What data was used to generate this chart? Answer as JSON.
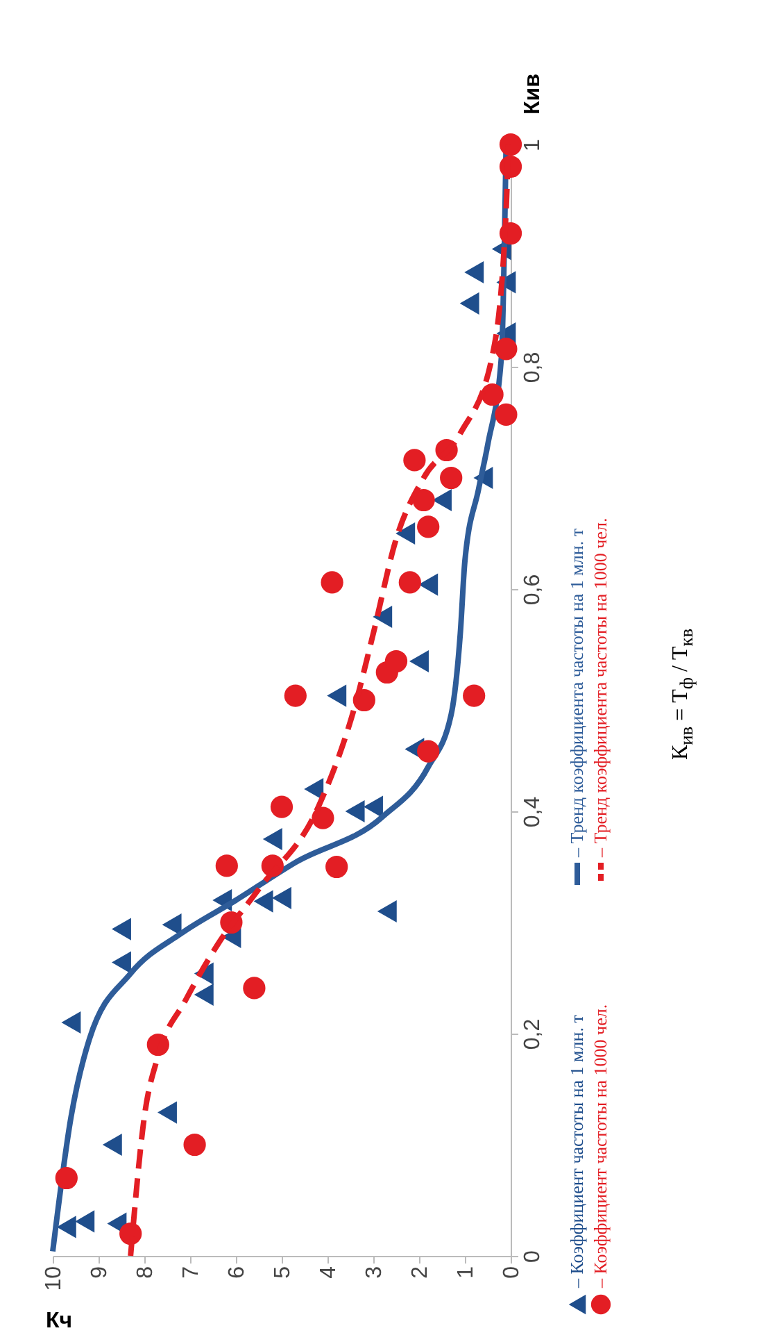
{
  "chart_data": {
    "type": "scatter",
    "xlabel": "Кч",
    "ylabel": "Кив",
    "xlim": [
      10,
      0
    ],
    "ylim": [
      0,
      1
    ],
    "xticks": [
      0,
      1,
      2,
      3,
      4,
      5,
      6,
      7,
      8,
      9,
      10
    ],
    "yticks": [
      0,
      {
        "value": 0.2,
        "label": "0,2"
      },
      {
        "value": 0.4,
        "label": "0,4"
      },
      {
        "value": 0.6,
        "label": "0,6"
      },
      {
        "value": 0.8,
        "label": "0,8"
      },
      1
    ],
    "legend": "right",
    "grid": false,
    "annotations": [
      "К$_{ив}$ = T$_{ф}$ / T$_{кв}$"
    ],
    "series": [
      {
        "name": "– Коэффициент частоты на 1 млн. т",
        "marker": "triangle",
        "color": "#1f4e8c",
        "x": [
          9.7,
          9.3,
          8.6,
          8.7,
          7.5,
          9.6,
          6.7,
          6.7,
          8.5,
          8.5,
          7.4,
          6.1,
          6.3,
          5.4,
          5.0,
          2.7,
          4.3,
          3.4,
          3.0,
          5.2,
          3.8,
          2.1,
          2.0,
          2.8,
          1.8,
          2.3,
          1.5,
          0.6,
          0.8,
          0.9,
          0.1,
          0.2,
          0.1
        ],
        "values": [
          0.026,
          0.031,
          0.029,
          0.1,
          0.129,
          0.21,
          0.235,
          0.254,
          0.264,
          0.294,
          0.298,
          0.287,
          0.32,
          0.319,
          0.322,
          0.31,
          0.42,
          0.4,
          0.404,
          0.375,
          0.504,
          0.456,
          0.535,
          0.575,
          0.604,
          0.65,
          0.68,
          0.7,
          0.885,
          0.857,
          0.876,
          0.906,
          0.83
        ]
      },
      {
        "name": "– Тренд коэффициента частоты на 1 млн. т",
        "type": "line",
        "line_style": "solid",
        "color": "#2e5c99",
        "x": [
          10.0,
          9.6,
          9.2,
          8.3,
          7.2,
          6.0,
          4.7,
          2.8,
          1.8,
          1.3,
          1.1,
          1.0,
          0.7,
          0.5,
          0.2,
          0.1
        ],
        "values": [
          0.004,
          0.125,
          0.195,
          0.254,
          0.29,
          0.32,
          0.354,
          0.395,
          0.44,
          0.487,
          0.56,
          0.625,
          0.69,
          0.73,
          0.81,
          1.0
        ]
      },
      {
        "name": "– Коэффициент частоты на 1000 чел.",
        "marker": "circle",
        "color": "#e31e24",
        "x": [
          9.7,
          8.3,
          6.9,
          7.7,
          5.6,
          6.1,
          6.2,
          3.8,
          5.2,
          5.0,
          4.1,
          1.8,
          4.7,
          3.2,
          0.8,
          2.7,
          2.5,
          3.9,
          2.2,
          1.8,
          1.9,
          2.1,
          1.3,
          1.4,
          0.1,
          0.4,
          0.1,
          0.0,
          0.0,
          0.0
        ],
        "values": [
          0.07,
          0.02,
          0.1,
          0.19,
          0.241,
          0.3,
          0.351,
          0.35,
          0.351,
          0.404,
          0.394,
          0.454,
          0.504,
          0.5,
          0.504,
          0.525,
          0.535,
          0.606,
          0.606,
          0.656,
          0.68,
          0.716,
          0.7,
          0.725,
          0.757,
          0.775,
          0.816,
          0.92,
          0.98,
          1.0
        ]
      },
      {
        "name": "– Тренд коэффициента частоты на 1000 чел.",
        "type": "line",
        "line_style": "dashed",
        "color": "#e31e24",
        "x": [
          8.3,
          8.0,
          7.7,
          7.1,
          6.4,
          5.5,
          4.2,
          3.4,
          3.0,
          2.5,
          1.9,
          1.1,
          0.4,
          0.1,
          0.05
        ],
        "values": [
          0.0,
          0.125,
          0.18,
          0.23,
          0.28,
          0.33,
          0.404,
          0.495,
          0.56,
          0.645,
          0.7,
          0.74,
          0.81,
          0.94,
          1.0
        ]
      }
    ]
  }
}
